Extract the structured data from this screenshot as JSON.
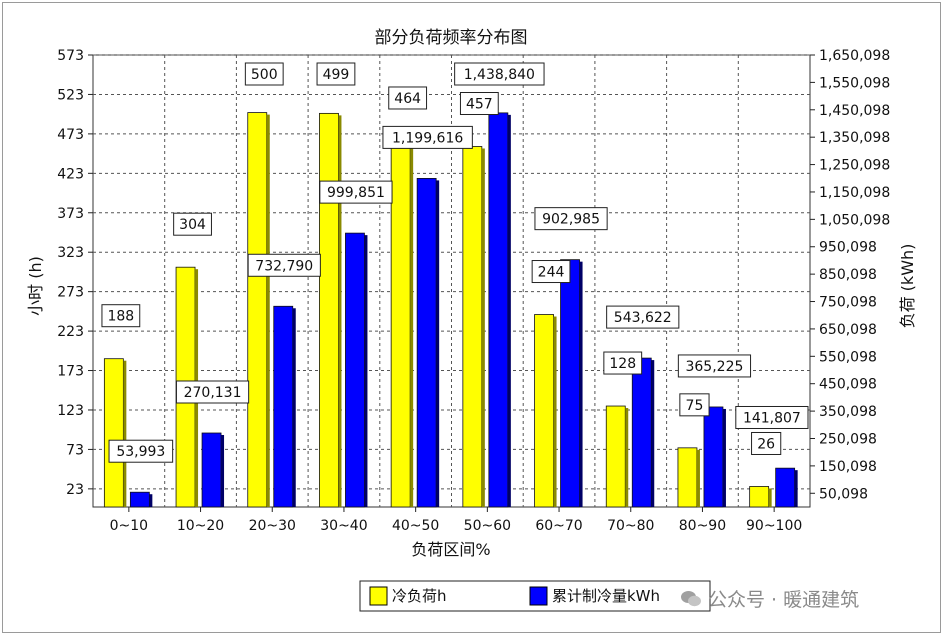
{
  "chart_data": {
    "type": "bar",
    "title": "部分负荷频率分布图",
    "xlabel": "负荷区间%",
    "ylabel_left": "小时 (h)",
    "ylabel_right": "负荷 (kWh)",
    "categories": [
      "0~10",
      "10~20",
      "20~30",
      "30~40",
      "40~50",
      "50~60",
      "60~70",
      "70~80",
      "80~90",
      "90~100"
    ],
    "series": [
      {
        "name": "冷负荷h",
        "axis": "left",
        "color": "#ffff00",
        "values": [
          188,
          304,
          500,
          499,
          464,
          457,
          244,
          128,
          75,
          26
        ],
        "labels": [
          "188",
          "304",
          "500",
          "499",
          "464",
          "457",
          "244",
          "128",
          "75",
          "26"
        ]
      },
      {
        "name": "累计制冷量kWh",
        "axis": "right",
        "color": "#0000ff",
        "values": [
          53993,
          270131,
          732790,
          999851,
          1199616,
          1438840,
          902985,
          543622,
          365225,
          141807
        ],
        "labels": [
          "53,993",
          "270,131",
          "732,790",
          "999,851",
          "1,199,616",
          "1,438,840",
          "902,985",
          "543,622",
          "365,225",
          "141,807"
        ]
      }
    ],
    "y_left_ticks": [
      "23",
      "73",
      "123",
      "173",
      "223",
      "273",
      "323",
      "373",
      "423",
      "473",
      "523",
      "573"
    ],
    "y_right_ticks": [
      "50,098",
      "150,098",
      "250,098",
      "350,098",
      "450,098",
      "550,098",
      "650,098",
      "750,098",
      "850,098",
      "950,098",
      "1,050,098",
      "1,150,098",
      "1,250,098",
      "1,350,098",
      "1,450,098",
      "1,550,098",
      "1,650,098"
    ],
    "ylim_left": [
      0,
      573
    ],
    "ylim_right": [
      0,
      1650098
    ],
    "grid": true,
    "legend_position": "bottom"
  },
  "watermark": {
    "text": "公众号 · 暖通建筑",
    "icon": "wechat-icon"
  }
}
